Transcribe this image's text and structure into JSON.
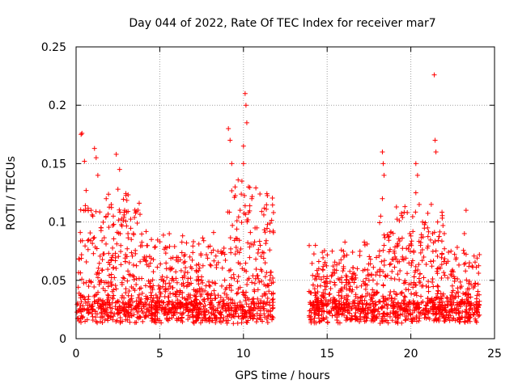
{
  "chart_data": {
    "type": "scatter",
    "title": "Day 044 of 2022, Rate Of TEC Index for receiver mar7",
    "xlabel": "GPS time / hours",
    "ylabel": "ROTI / TECUs",
    "xlim": [
      0,
      25
    ],
    "ylim": [
      0,
      0.25
    ],
    "xticks": [
      0,
      5,
      10,
      15,
      20,
      25
    ],
    "yticks": [
      0,
      0.05,
      0.1,
      0.15,
      0.2,
      0.25
    ],
    "xtick_labels": [
      "0",
      "5",
      "10",
      "15",
      "20",
      "25"
    ],
    "ytick_labels": [
      "0",
      "0.05",
      "0.1",
      "0.15",
      "0.2",
      "0.25"
    ],
    "grid": true,
    "marker": "+",
    "color": "#ff0000",
    "data_gap_hours": [
      11.8,
      13.9
    ],
    "series": [
      {
        "name": "ROTI",
        "points": [
          [
            0.3,
            0.175
          ],
          [
            0.35,
            0.176
          ],
          [
            0.5,
            0.152
          ],
          [
            0.6,
            0.127
          ],
          [
            0.9,
            0.11
          ],
          [
            1.1,
            0.163
          ],
          [
            1.2,
            0.155
          ],
          [
            1.3,
            0.14
          ],
          [
            1.0,
            0.105
          ],
          [
            1.5,
            0.095
          ],
          [
            1.8,
            0.12
          ],
          [
            2.1,
            0.115
          ],
          [
            2.4,
            0.158
          ],
          [
            2.6,
            0.145
          ],
          [
            2.5,
            0.128
          ],
          [
            2.9,
            0.11
          ],
          [
            3.1,
            0.09
          ],
          [
            3.3,
            0.085
          ],
          [
            4.5,
            0.085
          ],
          [
            4.2,
            0.07
          ],
          [
            5.4,
            0.06
          ],
          [
            6.6,
            0.082
          ],
          [
            6.8,
            0.07
          ],
          [
            7.5,
            0.05
          ],
          [
            8.0,
            0.045
          ],
          [
            9.1,
            0.18
          ],
          [
            9.2,
            0.17
          ],
          [
            9.3,
            0.15
          ],
          [
            9.5,
            0.13
          ],
          [
            9.8,
            0.11
          ],
          [
            10.0,
            0.165
          ],
          [
            10.1,
            0.21
          ],
          [
            10.15,
            0.2
          ],
          [
            10.2,
            0.185
          ],
          [
            10.0,
            0.15
          ],
          [
            10.3,
            0.13
          ],
          [
            10.5,
            0.12
          ],
          [
            10.8,
            0.095
          ],
          [
            11.0,
            0.08
          ],
          [
            11.3,
            0.065
          ],
          [
            14.3,
            0.08
          ],
          [
            14.5,
            0.06
          ],
          [
            15.3,
            0.075
          ],
          [
            16.0,
            0.07
          ],
          [
            16.8,
            0.06
          ],
          [
            17.5,
            0.05
          ],
          [
            18.3,
            0.16
          ],
          [
            18.35,
            0.15
          ],
          [
            18.4,
            0.14
          ],
          [
            18.3,
            0.12
          ],
          [
            18.2,
            0.105
          ],
          [
            18.4,
            0.08
          ],
          [
            19.0,
            0.075
          ],
          [
            19.5,
            0.07
          ],
          [
            20.3,
            0.15
          ],
          [
            20.4,
            0.14
          ],
          [
            20.3,
            0.125
          ],
          [
            20.5,
            0.115
          ],
          [
            20.7,
            0.1
          ],
          [
            21.0,
            0.095
          ],
          [
            21.3,
            0.09
          ],
          [
            21.4,
            0.226
          ],
          [
            21.45,
            0.17
          ],
          [
            21.5,
            0.16
          ],
          [
            21.6,
            0.1
          ],
          [
            22.0,
            0.09
          ],
          [
            22.4,
            0.075
          ],
          [
            23.3,
            0.11
          ],
          [
            23.2,
            0.09
          ],
          [
            23.5,
            0.065
          ]
        ]
      }
    ]
  }
}
